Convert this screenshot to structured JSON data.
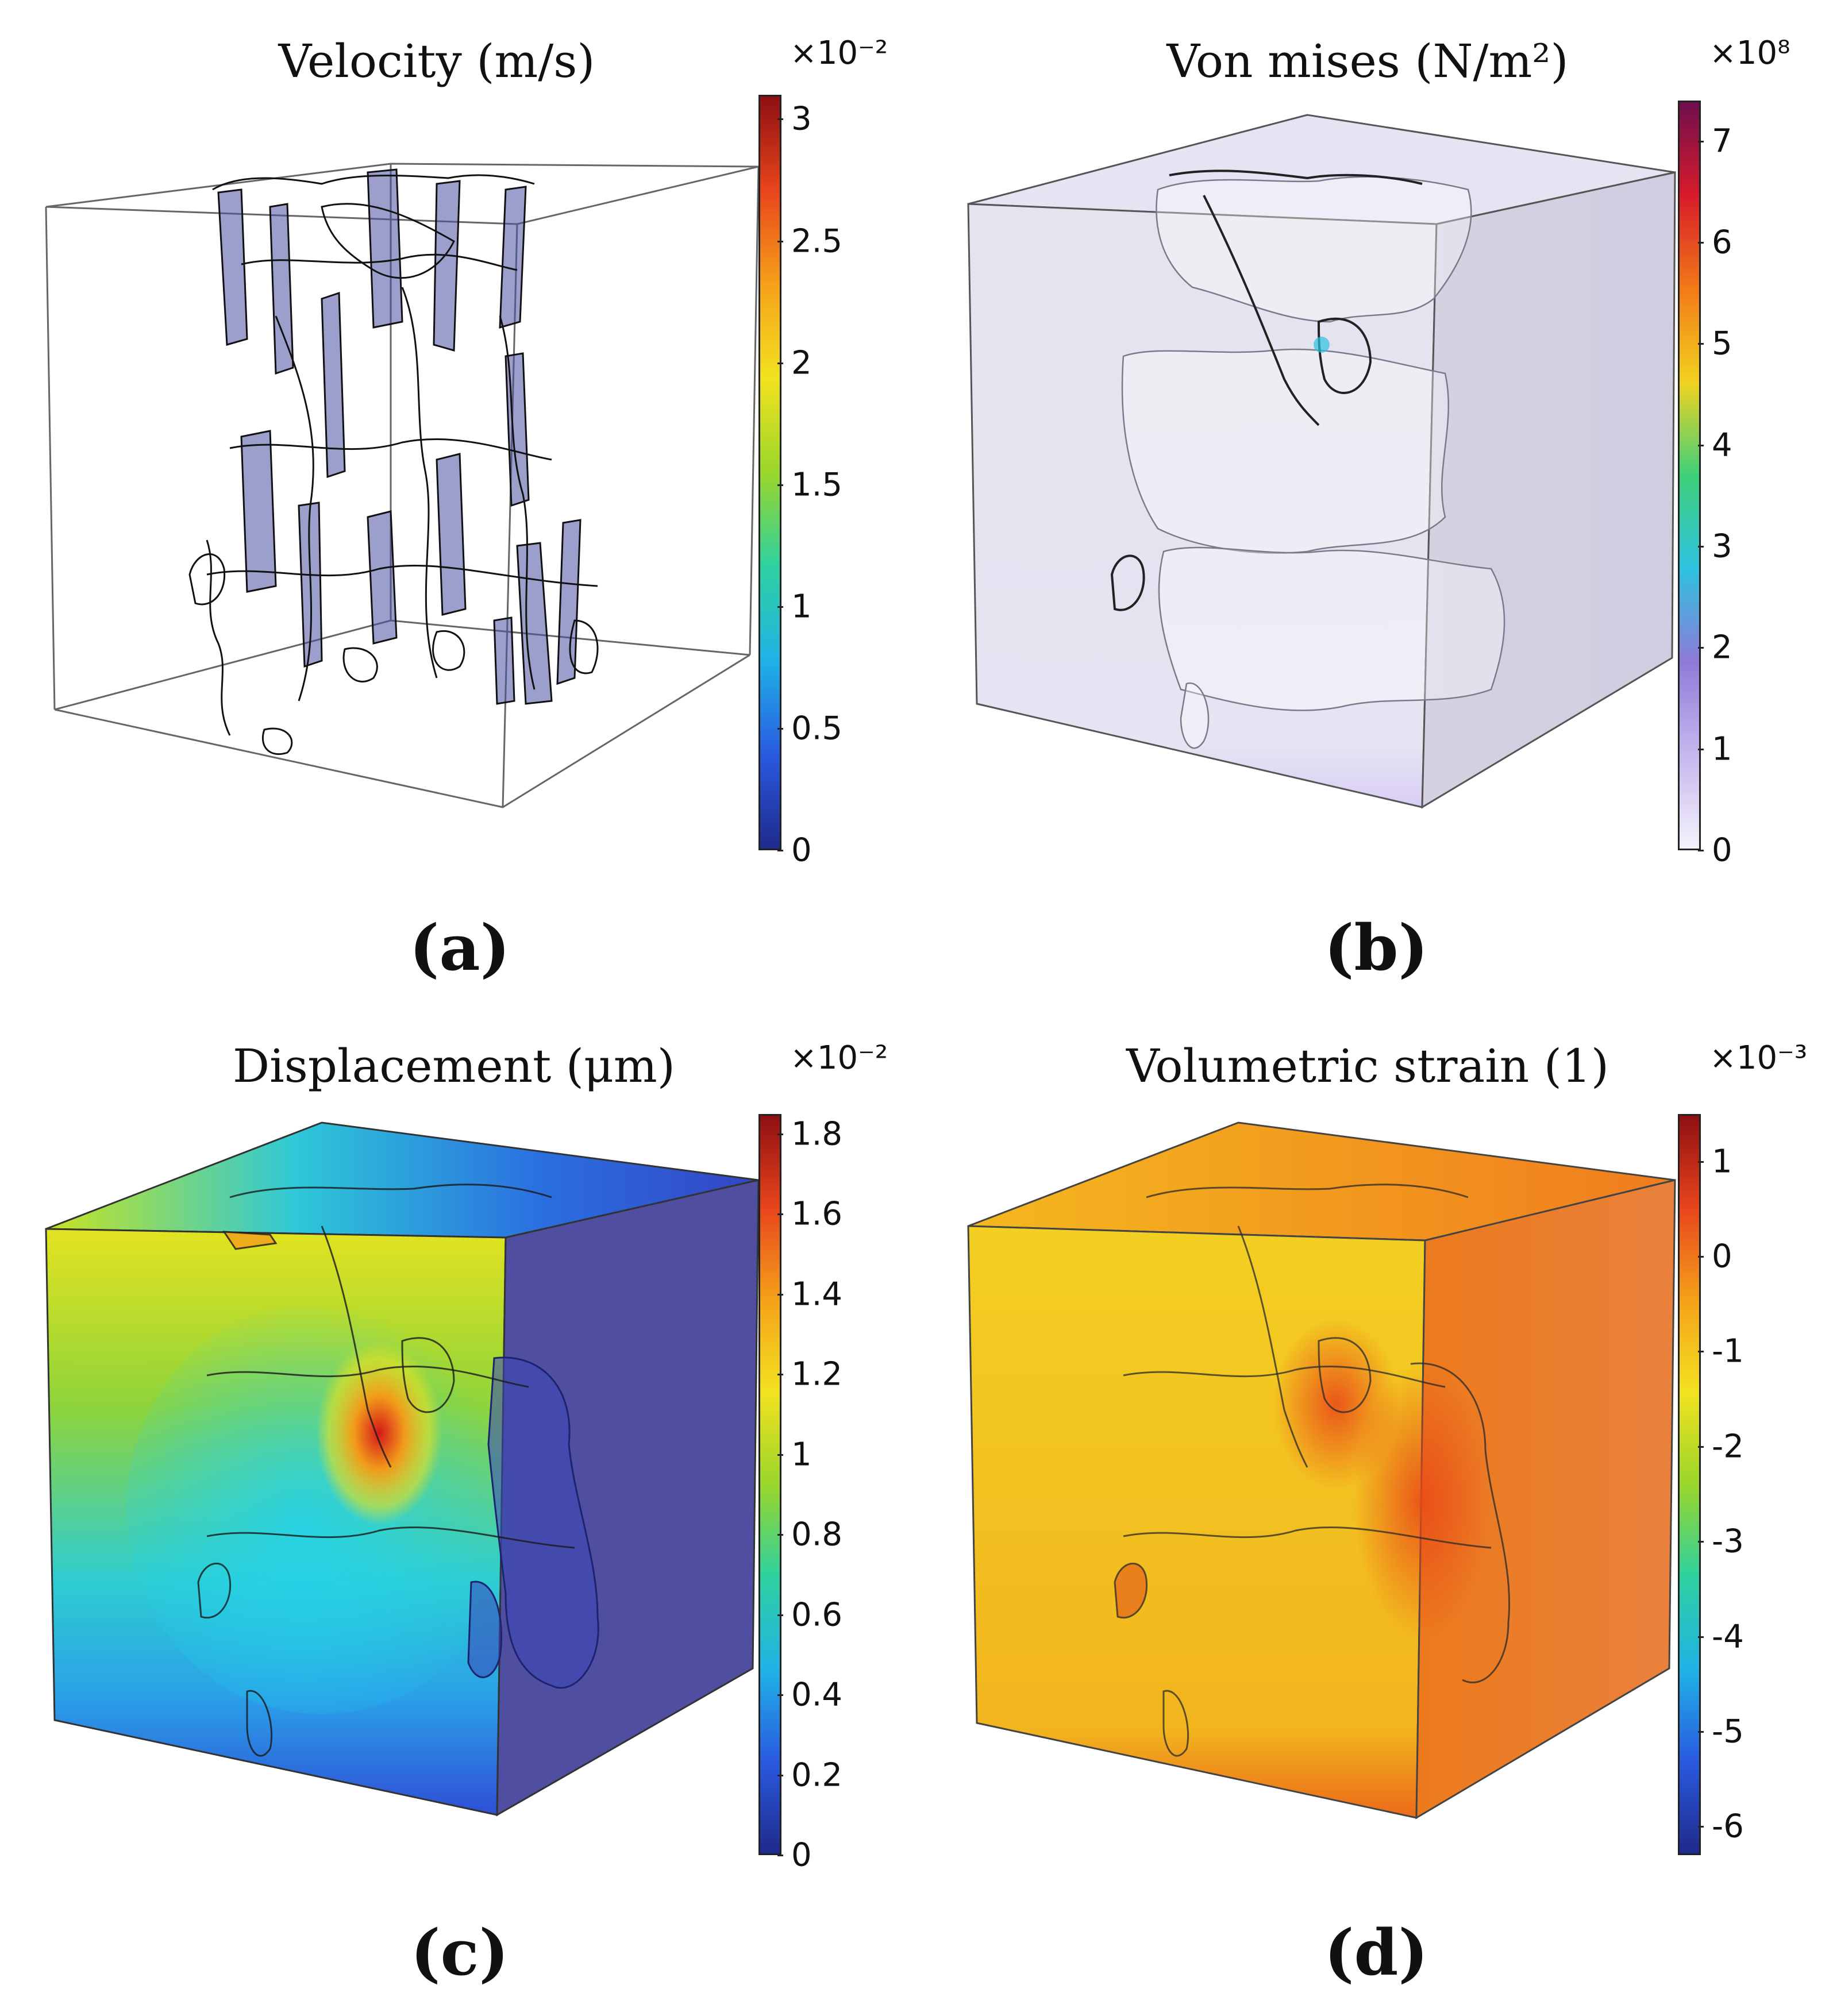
{
  "figure": {
    "panels": [
      {
        "id": "a",
        "title": "Velocity (m/s)",
        "scale": "×10⁻²",
        "ticks": [
          "0",
          "0.5",
          "1",
          "1.5",
          "2",
          "2.5",
          "3"
        ],
        "max": 3.1,
        "colormap": "rainbow",
        "label": "(a)",
        "render": "wireframe"
      },
      {
        "id": "b",
        "title": "Von mises (N/m²)",
        "scale": "×10⁸",
        "ticks": [
          "0",
          "1",
          "2",
          "3",
          "4",
          "5",
          "6",
          "7"
        ],
        "max": 7.4,
        "colormap": "thermal_light",
        "label": "(b)",
        "render": "light"
      },
      {
        "id": "c",
        "title": "Displacement (μm)",
        "scale": "×10⁻²",
        "ticks": [
          "0",
          "0.2",
          "0.4",
          "0.6",
          "0.8",
          "1",
          "1.2",
          "1.4",
          "1.6",
          "1.8"
        ],
        "max": 1.85,
        "colormap": "rainbow",
        "label": "(c)",
        "render": "displacement"
      },
      {
        "id": "d",
        "title": "Volumetric strain (1)",
        "scale": "×10⁻³",
        "ticks": [
          "-6",
          "-5",
          "-4",
          "-3",
          "-2",
          "-1",
          "0",
          "1"
        ],
        "min": -6.3,
        "max": 1.5,
        "colormap": "rainbow",
        "label": "(d)",
        "render": "strain"
      }
    ],
    "colors": {
      "rainbow": [
        "#1f2a8c",
        "#2a5ae0",
        "#1fb3e6",
        "#2ed1a0",
        "#9ad62a",
        "#f2e21f",
        "#f5a11a",
        "#e8451c",
        "#8f0f12"
      ],
      "thermal_light": [
        "#f4f2fa",
        "#c7b8ef",
        "#8f7ad8",
        "#2ec2e0",
        "#3fd07a",
        "#f1d21f",
        "#f27a18",
        "#d81b2a",
        "#6e0f4e"
      ],
      "pore_fill": "#4a4fa0"
    }
  }
}
